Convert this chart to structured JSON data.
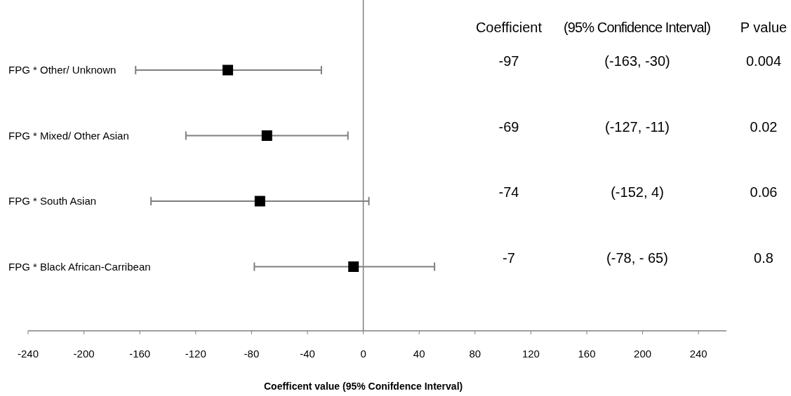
{
  "chart_data": {
    "type": "scatter",
    "orientation": "horizontal",
    "xlabel": "Coefficent value (95% Conifdence Interval)",
    "categories": [
      "FPG * Other/ Unknown",
      "FPG * Mixed/ Other Asian",
      "FPG * South Asian",
      "FPG * Black African-Carribean"
    ],
    "values": [
      -97,
      -69,
      -74,
      -7
    ],
    "errors": [
      [
        -163,
        -30
      ],
      [
        -127,
        -11
      ],
      [
        -152,
        4
      ],
      [
        -78,
        51
      ]
    ],
    "color": "#000000",
    "marker": "square",
    "grid": false,
    "xlim": [
      -240,
      260
    ],
    "xticks": [
      -240,
      -200,
      -160,
      -120,
      -80,
      -40,
      0,
      40,
      80,
      120,
      160,
      200,
      240
    ],
    "ref_lines": [
      {
        "axis": "x",
        "value": 0,
        "color": "#7f7f7f"
      }
    ],
    "annotations": [
      "Coefficient",
      "(95% Confidence Interval)",
      "P value",
      "-97",
      "(-163, -30)",
      "0.004",
      "-69",
      "(-127, -11)",
      "0.02",
      "-74",
      "(-152, 4)",
      "0.06",
      "-7",
      "(-78, - 65)",
      "0.8"
    ]
  }
}
